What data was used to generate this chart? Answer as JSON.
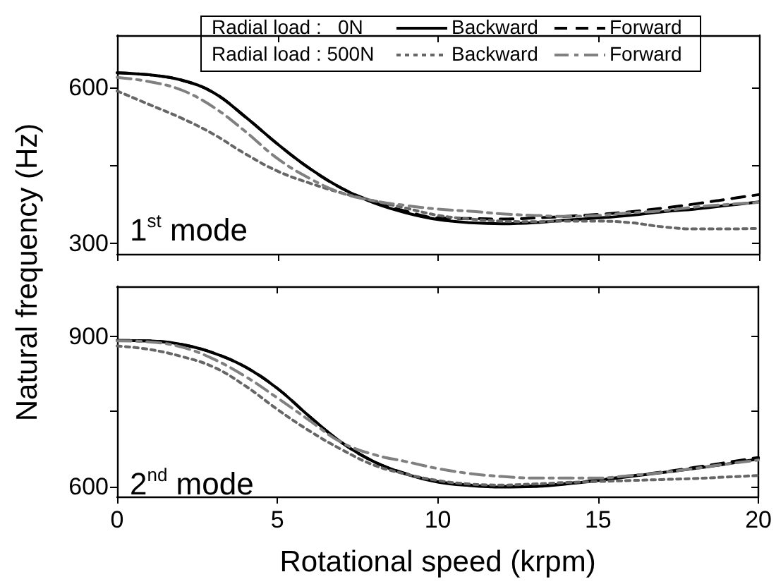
{
  "chart_data": [
    {
      "type": "line",
      "ylabel": "Natural frequency (Hz)",
      "annotations": [
        "Radial load :   0N",
        "Radial load : 500N",
        "1$^{st}$ mode"
      ],
      "legend": "top",
      "tick_labels": "y",
      "grid": false,
      "marker": "none",
      "x": [
        0,
        1,
        2,
        3,
        4,
        5,
        6,
        7,
        8,
        9,
        10,
        11,
        12,
        13,
        14,
        15,
        16,
        17,
        18,
        19,
        20
      ],
      "xlim": [
        0,
        20
      ],
      "xticks": [
        {
          "value": 0,
          "label": null
        },
        {
          "value": 5,
          "label": null
        },
        {
          "value": 10,
          "label": null
        },
        {
          "value": 15,
          "label": null
        },
        {
          "value": 20,
          "label": null
        }
      ],
      "ylim": [
        280,
        700
      ],
      "yticks": [
        300,
        {
          "value": 450,
          "label": null
        },
        600
      ],
      "series": [
        {
          "name": "Backward",
          "color": "#000000",
          "line_style": "solid",
          "values": [
            628,
            624,
            614,
            590,
            543,
            491,
            444,
            406,
            378,
            359,
            346,
            340,
            338,
            340,
            345,
            349,
            354,
            361,
            366,
            373,
            380
          ]
        },
        {
          "name": "Forward",
          "color": "#000000",
          "line_style": "dashed",
          "values": [
            628,
            624,
            614,
            590,
            543,
            491,
            444,
            406,
            380,
            362,
            349,
            348,
            347,
            349,
            352,
            356,
            361,
            368,
            376,
            385,
            394
          ]
        },
        {
          "name": "Backward",
          "color": "#666666",
          "line_style": "dotted",
          "values": [
            593,
            567,
            541,
            510,
            472,
            439,
            416,
            397,
            382,
            368,
            354,
            347,
            343,
            342,
            343,
            343,
            340,
            332,
            328,
            328,
            329
          ]
        },
        {
          "name": "Forward",
          "color": "#808080",
          "line_style": "dashdot",
          "values": [
            619,
            611,
            595,
            562,
            515,
            463,
            425,
            397,
            382,
            373,
            366,
            362,
            357,
            354,
            352,
            354,
            359,
            363,
            370,
            375,
            379
          ]
        }
      ]
    },
    {
      "type": "line",
      "xlabel": "Rotational speed (krpm)",
      "annotations": [
        "2$^{nd}$ mode"
      ],
      "legend": false,
      "grid": false,
      "marker": "none",
      "x": [
        0,
        1,
        2,
        3,
        4,
        5,
        6,
        7,
        8,
        9,
        10,
        11,
        12,
        13,
        14,
        15,
        16,
        17,
        18,
        19,
        20
      ],
      "xlim": [
        0,
        20
      ],
      "xticks": [
        0,
        5,
        10,
        15,
        20
      ],
      "ylim": [
        580,
        1000
      ],
      "yticks": [
        600,
        {
          "value": 750,
          "label": null
        },
        900
      ],
      "series": [
        {
          "color": "#000000",
          "line_style": "solid",
          "values": [
            892,
            891,
            884,
            867,
            839,
            796,
            740,
            688,
            650,
            625,
            609,
            602,
            599,
            600,
            605,
            612,
            620,
            628,
            636,
            645,
            655
          ]
        },
        {
          "color": "#000000",
          "line_style": "dashed",
          "values": [
            892,
            891,
            884,
            867,
            839,
            796,
            740,
            688,
            650,
            626,
            610,
            603,
            600,
            601,
            606,
            613,
            621,
            629,
            638,
            648,
            658
          ]
        },
        {
          "color": "#666666",
          "line_style": "dotted",
          "values": [
            881,
            874,
            860,
            839,
            801,
            754,
            711,
            674,
            643,
            625,
            612,
            605,
            603,
            605,
            608,
            610,
            612,
            614,
            616,
            619,
            622
          ]
        },
        {
          "color": "#808080",
          "line_style": "dashdot",
          "values": [
            891,
            889,
            879,
            855,
            820,
            777,
            732,
            688,
            664,
            650,
            636,
            626,
            620,
            617,
            617,
            617,
            622,
            628,
            636,
            645,
            653
          ]
        }
      ]
    }
  ]
}
